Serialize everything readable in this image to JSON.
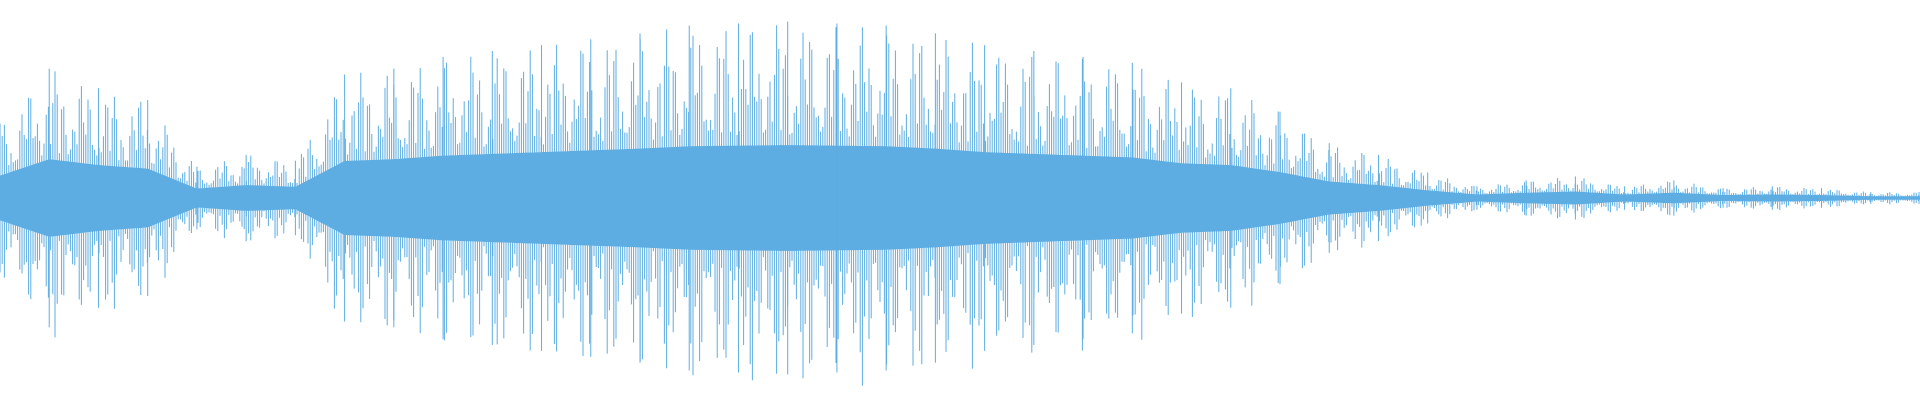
{
  "waveform": {
    "color": "#5dade2",
    "envelope": [
      0.38,
      0.66,
      0.56,
      0.5,
      0.16,
      0.22,
      0.19,
      0.63,
      0.66,
      0.72,
      0.75,
      0.78,
      0.81,
      0.84,
      0.88,
      0.89,
      0.9,
      0.89,
      0.88,
      0.84,
      0.78,
      0.75,
      0.72,
      0.69,
      0.59,
      0.56,
      0.44,
      0.28,
      0.22,
      0.13,
      0.06,
      0.09,
      0.11,
      0.06,
      0.09,
      0.05,
      0.06,
      0.05,
      0.03,
      0.03
    ]
  }
}
